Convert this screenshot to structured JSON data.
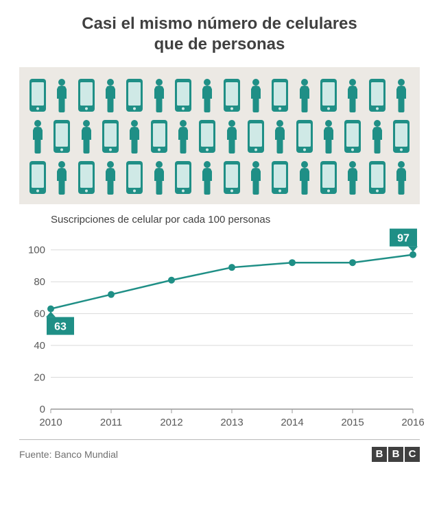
{
  "title_line1": "Casi el mismo número de celulares",
  "title_line2": "que de personas",
  "infographic": {
    "background_color": "#ece9e4",
    "phone_color": "#1f8f86",
    "phone_screen_color": "#cfe9e6",
    "person_color": "#1f8f86",
    "rows": 3,
    "items_per_row": 16,
    "pattern_row1": [
      "phone",
      "person",
      "phone",
      "person",
      "phone",
      "person",
      "phone",
      "person",
      "phone",
      "person",
      "phone",
      "person",
      "phone",
      "person",
      "phone",
      "person"
    ],
    "pattern_row2": [
      "person",
      "phone",
      "person",
      "phone",
      "person",
      "phone",
      "person",
      "phone",
      "person",
      "phone",
      "person",
      "phone",
      "person",
      "phone",
      "person",
      "phone"
    ],
    "pattern_row3": [
      "phone",
      "person",
      "phone",
      "person",
      "phone",
      "person",
      "phone",
      "person",
      "phone",
      "person",
      "phone",
      "person",
      "phone",
      "person",
      "phone",
      "person"
    ]
  },
  "chart": {
    "type": "line",
    "subtitle": "Suscripciones de celular por cada 100 personas",
    "x_labels": [
      "2010",
      "2011",
      "2012",
      "2013",
      "2014",
      "2015",
      "2016"
    ],
    "y_ticks": [
      0,
      20,
      40,
      60,
      80,
      100
    ],
    "ylim": [
      0,
      105
    ],
    "values": [
      63,
      72,
      81,
      89,
      92,
      92,
      97
    ],
    "line_color": "#1f8f86",
    "line_width": 2.5,
    "marker_radius": 5,
    "marker_fill": "#1f8f86",
    "grid_color": "#d9d9d9",
    "baseline_color": "#999999",
    "tick_font_size": 15,
    "tick_color": "#595959",
    "callouts": [
      {
        "index": 0,
        "direction": "down",
        "label": "63"
      },
      {
        "index": 6,
        "direction": "up",
        "label": "97"
      }
    ],
    "callout_bg": "#1f8f86",
    "callout_text": "#ffffff",
    "callout_font_size": 16
  },
  "footer": {
    "source_label": "Fuente: Banco Mundial",
    "logo_letters": [
      "B",
      "B",
      "C"
    ],
    "border_color": "#b8b8b8"
  }
}
